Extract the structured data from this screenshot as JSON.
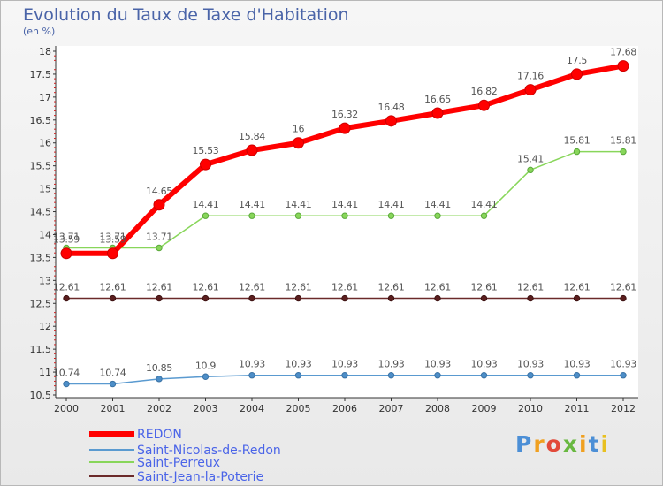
{
  "title": "Evolution du Taux de Taxe d'Habitation",
  "subtitle": "(en %)",
  "logo": {
    "letters": [
      "P",
      "r",
      "o",
      "x",
      "i",
      "t",
      "i"
    ],
    "colors": [
      "#4c8fd6",
      "#f0a020",
      "#e24a3a",
      "#68b840",
      "#f0a020",
      "#4c8fd6",
      "#e8c020"
    ]
  },
  "chart_data": {
    "type": "line",
    "title": "Evolution du Taux de Taxe d'Habitation",
    "ylabel": "(en %)",
    "xlabel": "",
    "x": [
      "2000",
      "2001",
      "2002",
      "2003",
      "2004",
      "2005",
      "2006",
      "2007",
      "2008",
      "2009",
      "2010",
      "2011",
      "2012"
    ],
    "ylim": [
      10.5,
      18
    ],
    "yticks": [
      "10.5",
      "11",
      "11.5",
      "12",
      "12.5",
      "13",
      "13.5",
      "14",
      "14.5",
      "15",
      "15.5",
      "16",
      "16.5",
      "17",
      "17.5",
      "18"
    ],
    "grid": false,
    "legend_position": "bottom-left",
    "series": [
      {
        "name": "REDON",
        "color": "#ff0000",
        "values": [
          13.59,
          13.59,
          14.65,
          15.53,
          15.84,
          16,
          16.32,
          16.48,
          16.65,
          16.82,
          17.16,
          17.5,
          17.68
        ],
        "labels": [
          "13.59",
          "13.59",
          "14.65",
          "15.53",
          "15.84",
          "16",
          "16.32",
          "16.48",
          "16.65",
          "16.82",
          "17.16",
          "17.5",
          "17.68"
        ]
      },
      {
        "name": "Saint-Nicolas-de-Redon",
        "color": "#5a9ad0",
        "values": [
          10.74,
          10.74,
          10.85,
          10.9,
          10.93,
          10.93,
          10.93,
          10.93,
          10.93,
          10.93,
          10.93,
          10.93,
          10.93
        ],
        "labels": [
          "10.74",
          "10.74",
          "10.85",
          "10.9",
          "10.93",
          "10.93",
          "10.93",
          "10.93",
          "10.93",
          "10.93",
          "10.93",
          "10.93",
          "10.93"
        ]
      },
      {
        "name": "Saint-Perreux",
        "color": "#88d65a",
        "values": [
          13.71,
          13.71,
          13.71,
          14.41,
          14.41,
          14.41,
          14.41,
          14.41,
          14.41,
          14.41,
          15.41,
          15.81,
          15.81
        ],
        "labels": [
          "13.71",
          "13.71",
          "13.71",
          "14.41",
          "14.41",
          "14.41",
          "14.41",
          "14.41",
          "14.41",
          "14.41",
          "15.41",
          "15.81",
          "15.81"
        ]
      },
      {
        "name": "Saint-Jean-la-Poterie",
        "color": "#6b2a2a",
        "values": [
          12.61,
          12.61,
          12.61,
          12.61,
          12.61,
          12.61,
          12.61,
          12.61,
          12.61,
          12.61,
          12.61,
          12.61,
          12.61
        ],
        "labels": [
          "12.61",
          "12.61",
          "12.61",
          "12.61",
          "12.61",
          "12.61",
          "12.61",
          "12.61",
          "12.61",
          "12.61",
          "12.61",
          "12.61",
          "12.61"
        ]
      }
    ]
  }
}
